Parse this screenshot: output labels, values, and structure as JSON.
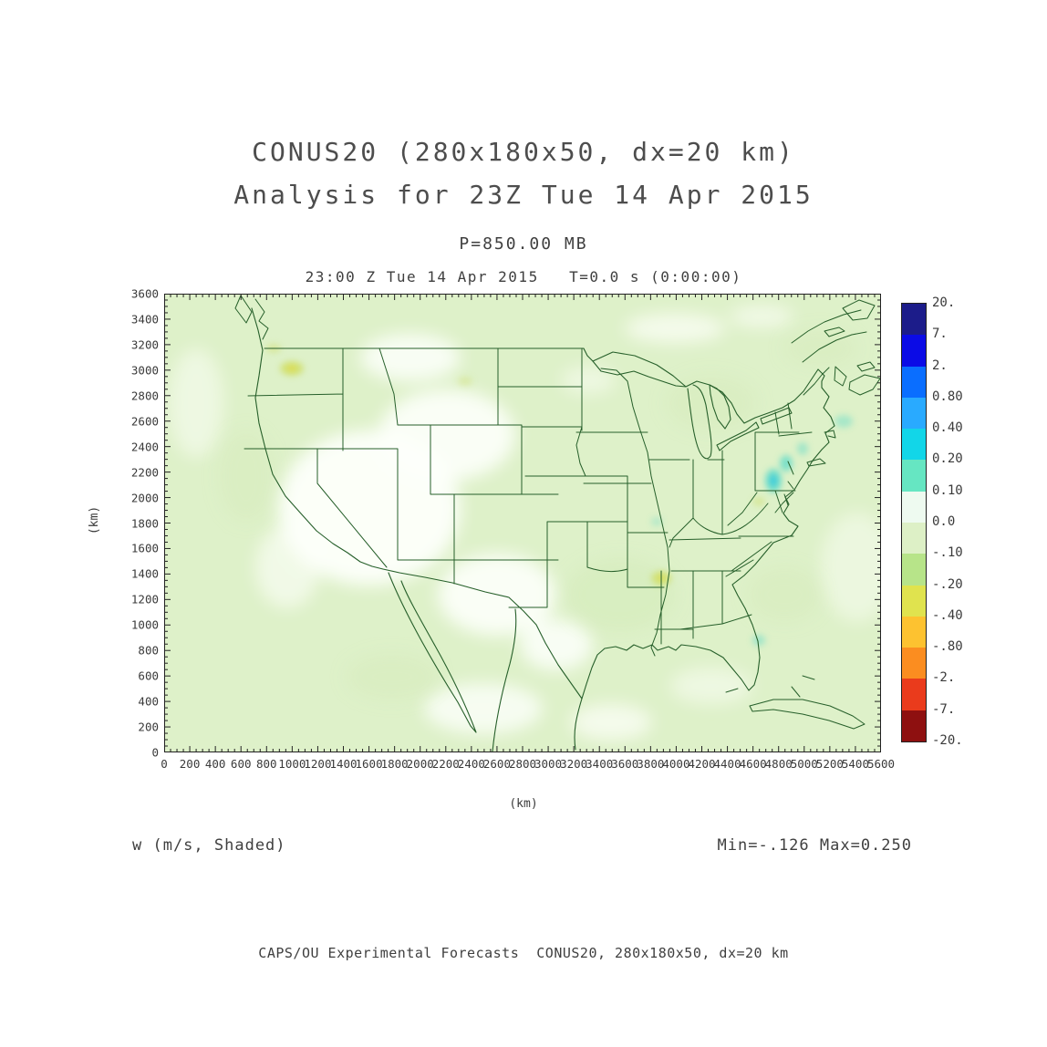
{
  "titles": {
    "line1": "CONUS20 (280x180x50, dx=20 km)",
    "line2": "Analysis for 23Z Tue 14 Apr 2015",
    "pressure": "P=850.00 MB",
    "time_line": "23:00 Z Tue 14 Apr 2015   T=0.0 s (0:00:00)"
  },
  "axes": {
    "x_label": "(km)",
    "y_label": "(km)",
    "x_ticks": [
      "0",
      "200",
      "400",
      "600",
      "800",
      "1000",
      "1200",
      "1400",
      "1600",
      "1800",
      "2000",
      "2200",
      "2400",
      "2600",
      "2800",
      "3000",
      "3200",
      "3400",
      "3600",
      "3800",
      "4000",
      "4200",
      "4400",
      "4600",
      "4800",
      "5000",
      "5200",
      "5400",
      "5600"
    ],
    "y_ticks": [
      "0",
      "200",
      "400",
      "600",
      "800",
      "1000",
      "1200",
      "1400",
      "1600",
      "1800",
      "2000",
      "2200",
      "2400",
      "2600",
      "2800",
      "3000",
      "3200",
      "3400",
      "3600"
    ]
  },
  "colorbar": {
    "labels": [
      "20.",
      "7.",
      "2.",
      "0.80",
      "0.40",
      "0.20",
      "0.10",
      "0.0",
      "-.10",
      "-.20",
      "-.40",
      "-.80",
      "-2.",
      "-7.",
      "-20."
    ],
    "colors": [
      "#1c1c8a",
      "#0b0be6",
      "#0a6eff",
      "#29aaff",
      "#12d6e8",
      "#66e6c2",
      "#eefaf0",
      "#ddf0c6",
      "#b7e489",
      "#e0e34e",
      "#fdc230",
      "#fb8d20",
      "#ea3b1c",
      "#8e1010"
    ]
  },
  "footer": {
    "variable_label": "w (m/s, Shaded)",
    "minmax": "Min=-.126 Max=0.250",
    "credit": "CAPS/OU Experimental Forecasts  CONUS20, 280x180x50, dx=20 km"
  },
  "theme": {
    "background": "#ffffff",
    "map_base": "#def1c9",
    "map_white": "#fdfffb",
    "mottle": "#cfe9b2",
    "border_green": "#265f2a",
    "teal": "#66dcc8",
    "teal_core": "#2fc8e0",
    "yellow_green": "#cfe070",
    "yellow_core": "#e3da3f",
    "text": "#3a3a3a"
  },
  "chart_data": {
    "type": "heatmap",
    "title": "CONUS20 (280x180x50, dx=20 km) Analysis for 23Z Tue 14 Apr 2015",
    "field": "w (m/s, Shaded)",
    "pressure_level": "P=850.00 MB",
    "valid_time": "23:00 Z Tue 14 Apr 2015",
    "forecast_time": "T=0.0 s (0:00:00)",
    "xlabel": "(km)",
    "ylabel": "(km)",
    "xlim": [
      0,
      5600
    ],
    "ylim": [
      0,
      3600
    ],
    "x_tick_step": 200,
    "y_tick_step": 200,
    "min": -0.126,
    "max": 0.25,
    "contour_levels": [
      -20,
      -7,
      -2,
      -0.8,
      -0.4,
      -0.2,
      -0.1,
      0.0,
      0.1,
      0.2,
      0.4,
      0.8,
      2,
      7,
      20
    ],
    "palette_top_to_bottom": [
      "#1c1c8a",
      "#0b0be6",
      "#0a6eff",
      "#29aaff",
      "#12d6e8",
      "#66e6c2",
      "#eefaf0",
      "#ddf0c6",
      "#b7e489",
      "#e0e34e",
      "#fdc230",
      "#fb8d20",
      "#ea3b1c",
      "#8e1010"
    ],
    "grid": false,
    "legend_position": "right-colorbar",
    "notes": "Vertical velocity shaded over a CONUS map with state borders. Most of the domain lies in the -0.10 to 0.0 band (pale green); patches of 0.0 to 0.10 (white) cover the interior West, northern Mexico and southern Canada; small positive maxima (teal, up to 0.250) sit near the mid-Atlantic coast; small negative minima (yellow-green, down to -0.126) over central Washington and Georgia."
  }
}
